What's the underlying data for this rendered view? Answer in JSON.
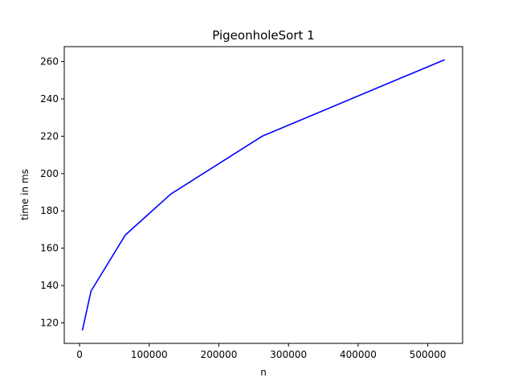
{
  "chart_data": {
    "type": "line",
    "title": "PigeonholeSort 1",
    "xlabel": "n",
    "ylabel": "time in ms",
    "xlim": [
      -22000,
      550000
    ],
    "ylim": [
      109,
      268
    ],
    "grid": false,
    "xticks": [
      0,
      100000,
      200000,
      300000,
      400000,
      500000
    ],
    "xtick_labels": [
      "0",
      "100000",
      "200000",
      "300000",
      "400000",
      "500000"
    ],
    "yticks": [
      120,
      140,
      160,
      180,
      200,
      220,
      240,
      260
    ],
    "ytick_labels": [
      "120",
      "140",
      "160",
      "180",
      "200",
      "220",
      "240",
      "260"
    ],
    "series": [
      {
        "color": "#0000ff",
        "x": [
          4096,
          16384,
          65536,
          131072,
          262144,
          524288
        ],
        "y": [
          116,
          137,
          167,
          189,
          220,
          261
        ]
      }
    ]
  }
}
